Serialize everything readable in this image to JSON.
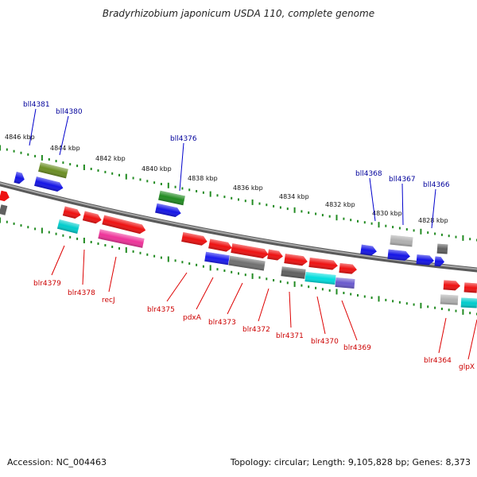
{
  "title": "Bradyrhizobium japonicum USDA 110, complete genome",
  "footer": {
    "accession": "Accession: NC_004463",
    "summary": "Topology: circular; Length: 9,105,828 bp; Genes: 8,373"
  },
  "colors": {
    "backbone": "#808080",
    "tick": "#228b22",
    "label_minus": "#00009b",
    "label_plus": "#cc0000",
    "leader_minus": "#0000cc",
    "leader_plus": "#dd0000"
  },
  "scale_labels": [
    "4846 kbp",
    "4844 kbp",
    "4842 kbp",
    "4840 kbp",
    "4838 kbp",
    "4836 kbp",
    "4834 kbp",
    "4832 kbp",
    "4830 kbp",
    "4828 kbp"
  ],
  "genes_minus": [
    {
      "label": "bll4381"
    },
    {
      "label": "bll4380"
    },
    {
      "label": "bll4376"
    },
    {
      "label": "bll4368"
    },
    {
      "label": "bll4367"
    },
    {
      "label": "bll4366"
    }
  ],
  "genes_plus": [
    {
      "label": "blr4379"
    },
    {
      "label": "blr4378"
    },
    {
      "label": "recJ"
    },
    {
      "label": "blr4375"
    },
    {
      "label": "pdxA"
    },
    {
      "label": "blr4373"
    },
    {
      "label": "blr4372"
    },
    {
      "label": "blr4371"
    },
    {
      "label": "blr4370"
    },
    {
      "label": "blr4369"
    },
    {
      "label": "blr4364"
    },
    {
      "label": "glpX"
    }
  ]
}
